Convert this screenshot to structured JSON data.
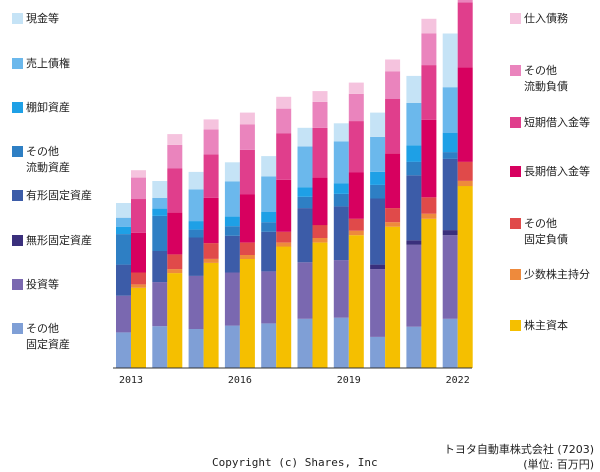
{
  "chart_data": {
    "type": "bar",
    "subtype": "stacked-paired",
    "categories": [
      "2013",
      "2014",
      "2015",
      "2016",
      "2017",
      "2018",
      "2019",
      "2020",
      "2021",
      "2022"
    ],
    "x_tick_labels": [
      "2013",
      "",
      "",
      "2016",
      "",
      "",
      "2019",
      "",
      "",
      "2022"
    ],
    "ylim": [
      0,
      63000000
    ],
    "assets": [
      {
        "name": "現金等",
        "color": "#c5e3f6",
        "values": [
          2600000,
          3000000,
          3100000,
          3400000,
          3600000,
          3300000,
          3200000,
          4300000,
          4800000,
          9500000
        ]
      },
      {
        "name": "売上債権",
        "color": "#6bb8ec",
        "values": [
          1600000,
          1900000,
          5600000,
          6200000,
          6300000,
          7200000,
          7400000,
          6200000,
          7500000,
          8100000
        ]
      },
      {
        "name": "棚卸資産",
        "color": "#1ea0e6",
        "values": [
          1300000,
          1300000,
          1500000,
          1700000,
          1800000,
          1700000,
          1900000,
          2300000,
          2900000,
          3400000
        ]
      },
      {
        "name": "その他\n流動資産",
        "color": "#2e7fc4",
        "values": [
          5400000,
          6200000,
          1400000,
          1700000,
          1700000,
          2000000,
          2200000,
          2400000,
          2400000,
          1200000
        ]
      },
      {
        "name": "有形固定資産",
        "color": "#3c5ca8",
        "values": [
          5500000,
          5500000,
          6800000,
          6500000,
          7000000,
          9600000,
          9500000,
          11700000,
          11500000,
          12600000
        ]
      },
      {
        "name": "無形固定資産",
        "color": "#3a2f7c",
        "values": [
          0,
          0,
          0,
          0,
          0,
          0,
          0,
          800000,
          800000,
          900000
        ]
      },
      {
        "name": "投資等",
        "color": "#7a68b0",
        "values": [
          6500000,
          7800000,
          9400000,
          9400000,
          9200000,
          10000000,
          10200000,
          12000000,
          14500000,
          14800000
        ]
      },
      {
        "name": "その他\n固定資産",
        "color": "#7f9fd6",
        "values": [
          6300000,
          7400000,
          6900000,
          7500000,
          7900000,
          8700000,
          8900000,
          5500000,
          7300000,
          8700000
        ]
      }
    ],
    "liabilities_equity": [
      {
        "name": "仕入債務",
        "color": "#f5c3de",
        "values": [
          1300000,
          1900000,
          1800000,
          2100000,
          2100000,
          1900000,
          2000000,
          2100000,
          2600000,
          2800000
        ]
      },
      {
        "name": "その他\n流動負債",
        "color": "#ea84bd",
        "values": [
          3800000,
          4200000,
          4400000,
          4500000,
          4400000,
          4600000,
          4800000,
          4900000,
          5600000,
          6600000
        ]
      },
      {
        "name": "短期借入金等",
        "color": "#e03e8c",
        "values": [
          6000000,
          7800000,
          7700000,
          7900000,
          8200000,
          8800000,
          9100000,
          9600000,
          9700000,
          11500000
        ]
      },
      {
        "name": "長期借入金等",
        "color": "#d7005f",
        "values": [
          7000000,
          7400000,
          8000000,
          8500000,
          9200000,
          8400000,
          8200000,
          9700000,
          13700000,
          16700000
        ]
      },
      {
        "name": "その他\n固定負債",
        "color": "#e04a4a",
        "values": [
          2100000,
          2600000,
          2800000,
          2200000,
          1900000,
          2300000,
          2100000,
          2500000,
          2900000,
          3400000
        ]
      },
      {
        "name": "少数株主持分",
        "color": "#ee8a3c",
        "values": [
          600000,
          700000,
          700000,
          700000,
          700000,
          800000,
          800000,
          800000,
          900000,
          900000
        ]
      },
      {
        "name": "株主資本",
        "color": "#f5bf00",
        "values": [
          14200000,
          16800000,
          18600000,
          19300000,
          21500000,
          22200000,
          23500000,
          25000000,
          26400000,
          32200000
        ]
      }
    ]
  },
  "legend_left": [
    "現金等",
    "売上債権",
    "棚卸資産",
    "その他\n流動資産",
    "有形固定資産",
    "無形固定資産",
    "投資等",
    "その他\n固定資産"
  ],
  "legend_right": [
    "仕入債務",
    "その他\n流動負債",
    "短期借入金等",
    "長期借入金等",
    "その他\n固定負債",
    "少数株主持分",
    "株主資本"
  ],
  "footer": {
    "company": "トヨタ自動車株式会社 (7203)",
    "copyright": "Copyright (c) Shares, Inc",
    "unit": "(単位: 百万円)"
  }
}
